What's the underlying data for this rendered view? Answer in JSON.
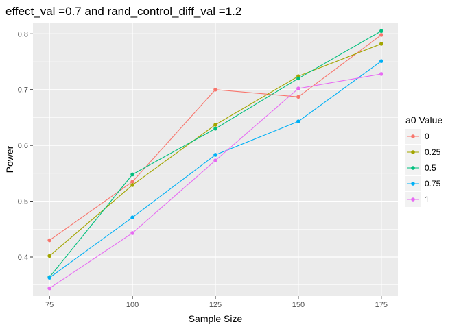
{
  "chart_data": {
    "type": "line",
    "title": "effect_val =0.7 and rand_control_diff_val =1.2",
    "xlabel": "Sample Size",
    "ylabel": "Power",
    "x": [
      75,
      100,
      125,
      150,
      175
    ],
    "xticks": [
      "75",
      "100",
      "125",
      "150",
      "175"
    ],
    "yticks": [
      "0.4",
      "0.5",
      "0.6",
      "0.7",
      "0.8"
    ],
    "xlim": [
      70,
      180
    ],
    "ylim": [
      0.33,
      0.82
    ],
    "grid": true,
    "legend": {
      "title": "a0 Value",
      "placement": "right"
    },
    "series": [
      {
        "name": "0",
        "color": "#F8766D",
        "values": [
          0.43,
          0.535,
          0.7,
          0.687,
          0.798
        ]
      },
      {
        "name": "0.25",
        "color": "#A3A500",
        "values": [
          0.402,
          0.529,
          0.637,
          0.724,
          0.782
        ]
      },
      {
        "name": "0.5",
        "color": "#00BF7D",
        "values": [
          0.364,
          0.548,
          0.63,
          0.72,
          0.805
        ]
      },
      {
        "name": "0.75",
        "color": "#00B0F6",
        "values": [
          0.363,
          0.471,
          0.583,
          0.643,
          0.751
        ]
      },
      {
        "name": "1",
        "color": "#E76BF3",
        "values": [
          0.344,
          0.443,
          0.573,
          0.702,
          0.728
        ]
      }
    ]
  }
}
